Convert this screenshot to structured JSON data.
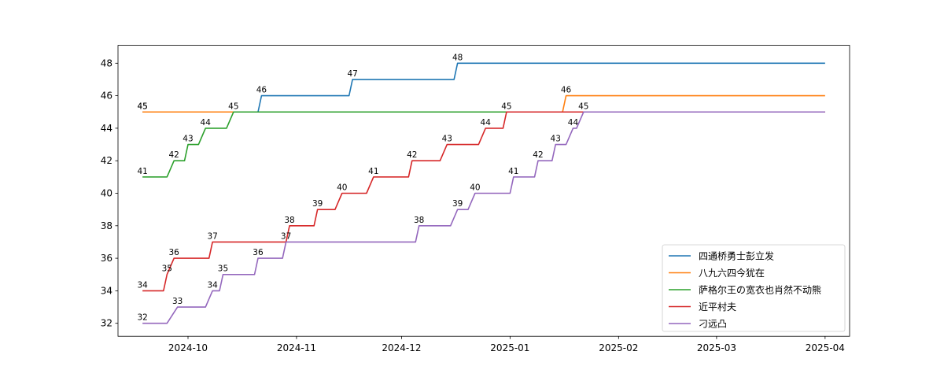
{
  "chart_data": {
    "type": "line",
    "title": "",
    "xlabel": "",
    "ylabel": "",
    "x_range": [
      "2024-09-11",
      "2025-04-08"
    ],
    "ylim": [
      31.2,
      49.1
    ],
    "grid": false,
    "legend_position": "lower-right",
    "x_ticks": [
      {
        "date": "2024-10-01",
        "label": "2024-10"
      },
      {
        "date": "2024-11-01",
        "label": "2024-11"
      },
      {
        "date": "2024-12-01",
        "label": "2024-12"
      },
      {
        "date": "2025-01-01",
        "label": "2025-01"
      },
      {
        "date": "2025-02-01",
        "label": "2025-02"
      },
      {
        "date": "2025-03-01",
        "label": "2025-03"
      },
      {
        "date": "2025-04-01",
        "label": "2025-04"
      }
    ],
    "y_ticks": [
      32,
      34,
      36,
      38,
      40,
      42,
      44,
      46,
      48
    ],
    "end_date": "2025-04-01",
    "series": [
      {
        "name": "四通桥勇士彭立发",
        "color": "#1f77b4",
        "steps": [
          {
            "from": "2024-09-18",
            "to": "2024-10-21",
            "value": 45,
            "label": "45"
          },
          {
            "from": "2024-10-22",
            "to": "2024-11-16",
            "value": 46,
            "label": "46"
          },
          {
            "from": "2024-11-17",
            "to": "2024-12-16",
            "value": 47,
            "label": "47"
          },
          {
            "from": "2024-12-17",
            "value": 48,
            "label": "48"
          }
        ]
      },
      {
        "name": "八九六四今犹在",
        "color": "#ff7f0e",
        "steps": [
          {
            "from": "2024-09-18",
            "to": "2025-01-16",
            "value": 45,
            "label": "45"
          },
          {
            "from": "2025-01-17",
            "value": 46,
            "label": "46"
          }
        ]
      },
      {
        "name": "萨格尔王の宽衣也肖然不动熊",
        "color": "#2ca02c",
        "steps": [
          {
            "from": "2024-09-18",
            "to": "2024-09-25",
            "value": 41,
            "label": "41"
          },
          {
            "from": "2024-09-27",
            "to": "2024-09-30",
            "value": 42,
            "label": "42"
          },
          {
            "from": "2024-10-01",
            "to": "2024-10-04",
            "value": 43,
            "label": "43"
          },
          {
            "from": "2024-10-06",
            "to": "2024-10-12",
            "value": 44,
            "label": "44"
          },
          {
            "from": "2024-10-14",
            "value": 45,
            "label": "45"
          }
        ]
      },
      {
        "name": "近平村夫",
        "color": "#d62728",
        "steps": [
          {
            "from": "2024-09-18",
            "to": "2024-09-24",
            "value": 34,
            "label": "34"
          },
          {
            "from": "2024-09-25",
            "to": "2024-09-25",
            "value": 35,
            "label": "35"
          },
          {
            "from": "2024-09-27",
            "to": "2024-10-07",
            "value": 36,
            "label": "36"
          },
          {
            "from": "2024-10-08",
            "to": "2024-10-29",
            "value": 37,
            "label": "37"
          },
          {
            "from": "2024-10-30",
            "to": "2024-11-06",
            "value": 38,
            "label": "38"
          },
          {
            "from": "2024-11-07",
            "to": "2024-11-12",
            "value": 39,
            "label": "39"
          },
          {
            "from": "2024-11-14",
            "to": "2024-11-21",
            "value": 40,
            "label": "40"
          },
          {
            "from": "2024-11-23",
            "to": "2024-12-03",
            "value": 41,
            "label": "41"
          },
          {
            "from": "2024-12-04",
            "to": "2024-12-12",
            "value": 42,
            "label": "42"
          },
          {
            "from": "2024-12-14",
            "to": "2024-12-23",
            "value": 43,
            "label": "43"
          },
          {
            "from": "2024-12-25",
            "to": "2024-12-30",
            "value": 44,
            "label": "44"
          },
          {
            "from": "2024-12-31",
            "value": 45,
            "label": "45"
          }
        ]
      },
      {
        "name": "刁远凸",
        "color": "#9467bd",
        "steps": [
          {
            "from": "2024-09-18",
            "to": "2024-09-25",
            "value": 32,
            "label": "32"
          },
          {
            "from": "2024-09-28",
            "to": "2024-10-06",
            "value": 33,
            "label": "33"
          },
          {
            "from": "2024-10-08",
            "to": "2024-10-10",
            "value": 34,
            "label": "34"
          },
          {
            "from": "2024-10-11",
            "to": "2024-10-20",
            "value": 35,
            "label": "35"
          },
          {
            "from": "2024-10-21",
            "to": "2024-10-28",
            "value": 36,
            "label": "36"
          },
          {
            "from": "2024-10-29",
            "to": "2024-12-05",
            "value": 37,
            "label": "37"
          },
          {
            "from": "2024-12-06",
            "to": "2024-12-15",
            "value": 38,
            "label": "38"
          },
          {
            "from": "2024-12-17",
            "to": "2024-12-20",
            "value": 39,
            "label": "39"
          },
          {
            "from": "2024-12-22",
            "to": "2025-01-01",
            "value": 40,
            "label": "40"
          },
          {
            "from": "2025-01-02",
            "to": "2025-01-08",
            "value": 41,
            "label": "41"
          },
          {
            "from": "2025-01-09",
            "to": "2025-01-13",
            "value": 42,
            "label": "42"
          },
          {
            "from": "2025-01-14",
            "to": "2025-01-17",
            "value": 43,
            "label": "43"
          },
          {
            "from": "2025-01-19",
            "to": "2025-01-20",
            "value": 44,
            "label": "44"
          },
          {
            "from": "2025-01-22",
            "value": 45,
            "label": "45"
          }
        ]
      }
    ]
  }
}
